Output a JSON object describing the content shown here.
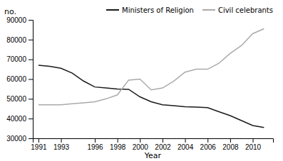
{
  "chart_data": {
    "type": "line",
    "x_label": "Year",
    "y_label": "no.",
    "x": [
      1991,
      1992,
      1993,
      1994,
      1995,
      1996,
      1997,
      1998,
      1999,
      2000,
      2001,
      2002,
      2003,
      2004,
      2005,
      2006,
      2007,
      2008,
      2009,
      2010,
      2011
    ],
    "series": [
      {
        "name": "Ministers of Religion",
        "color": "#1a1a1a",
        "values": [
          67000,
          66500,
          65500,
          63000,
          59000,
          56000,
          55500,
          55000,
          54800,
          51000,
          48500,
          47000,
          46500,
          46000,
          45800,
          45500,
          43500,
          41500,
          39000,
          36500,
          35500
        ]
      },
      {
        "name": "Civil celebrants",
        "color": "#aaaaaa",
        "values": [
          47000,
          47000,
          47000,
          47500,
          48000,
          48500,
          50000,
          52000,
          59500,
          60000,
          54500,
          55500,
          59000,
          63500,
          65000,
          65000,
          68000,
          73000,
          77000,
          83000,
          85500
        ]
      }
    ],
    "xlim": [
      1990.5,
      2011.8
    ],
    "xticks": [
      1991,
      1993,
      1996,
      1998,
      2000,
      2002,
      2004,
      2006,
      2008,
      2010
    ],
    "ylim": [
      30000,
      90000
    ],
    "yticks": [
      30000,
      40000,
      50000,
      60000,
      70000,
      80000,
      90000
    ],
    "grid": false,
    "legend": "upper right"
  }
}
